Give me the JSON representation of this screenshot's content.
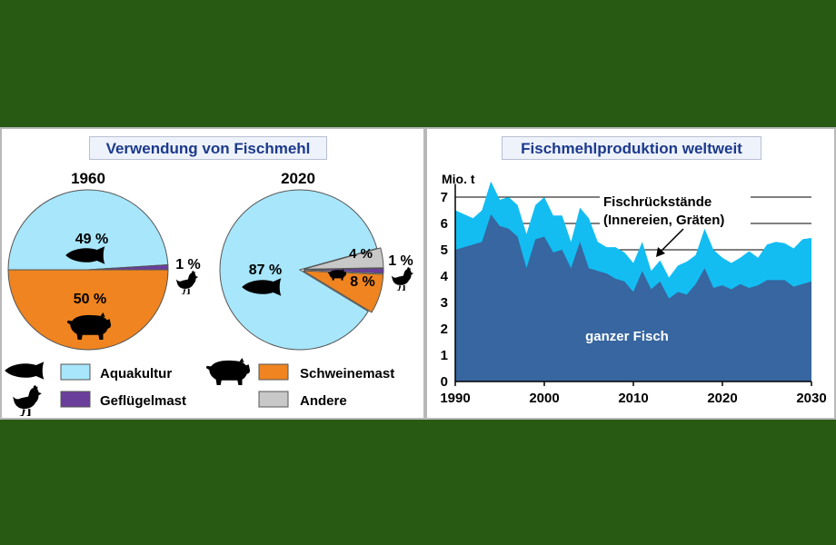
{
  "colors": {
    "background": "#285a14",
    "aquakultur": "#a7e6fb",
    "schweinemast": "#ef8420",
    "gefluegelmast": "#6a3f9c",
    "andere": "#c8c8c8",
    "ganzer_fisch": "#3766a0",
    "fischrueckstaende": "#13bdf2",
    "title_text": "#1c3a8c"
  },
  "left_panel": {
    "title": "Verwendung von Fischmehl",
    "legend": [
      {
        "label": "Aquakultur",
        "color_key": "aquakultur",
        "icon": "fish-icon"
      },
      {
        "label": "Schweinemast",
        "color_key": "schweinemast",
        "icon": "pig-icon"
      },
      {
        "label": "Geflügelmast",
        "color_key": "gefluegelmast",
        "icon": "chicken-icon"
      },
      {
        "label": "Andere",
        "color_key": "andere",
        "icon": ""
      }
    ]
  },
  "right_panel": {
    "title": "Fischmehlproduktion weltweit"
  },
  "chart_data": [
    {
      "type": "pie",
      "title": "1960",
      "slices": [
        {
          "label": "Aquakultur",
          "value": 49,
          "text": "49 %"
        },
        {
          "label": "Geflügelmast",
          "value": 1,
          "text": "1 %"
        },
        {
          "label": "Schweinemast",
          "value": 50,
          "text": "50 %"
        }
      ]
    },
    {
      "type": "pie",
      "title": "2020",
      "slices": [
        {
          "label": "Aquakultur",
          "value": 87,
          "text": "87 %"
        },
        {
          "label": "Schweinemast",
          "value": 8,
          "text": "8 %"
        },
        {
          "label": "Geflügelmast",
          "value": 1,
          "text": "1 %"
        },
        {
          "label": "Andere",
          "value": 4,
          "text": "4 %"
        }
      ]
    },
    {
      "type": "area",
      "ylabel": "Mio. t",
      "xlim": [
        1990,
        2030
      ],
      "ylim": [
        0,
        7.5
      ],
      "xticks": [
        1990,
        2000,
        2010,
        2020,
        2030
      ],
      "yticks": [
        0,
        1,
        2,
        3,
        4,
        5,
        6,
        7
      ],
      "grid": "y-partial",
      "x": [
        1990,
        1992,
        1993,
        1994,
        1995,
        1996,
        1997,
        1998,
        1999,
        2000,
        2001,
        2002,
        2003,
        2004,
        2005,
        2006,
        2007,
        2008,
        2009,
        2010,
        2011,
        2012,
        2013,
        2014,
        2015,
        2016,
        2017,
        2018,
        2019,
        2020,
        2021,
        2022,
        2023,
        2024,
        2025,
        2026,
        2027,
        2028,
        2029,
        2030
      ],
      "series": [
        {
          "name": "ganzer Fisch",
          "stack": "bottom",
          "values": [
            5.0,
            5.2,
            5.3,
            6.35,
            5.9,
            5.8,
            5.5,
            4.3,
            5.4,
            5.5,
            4.9,
            5.0,
            4.3,
            5.3,
            4.3,
            4.2,
            4.1,
            3.9,
            3.8,
            3.4,
            4.2,
            3.5,
            3.8,
            3.15,
            3.4,
            3.3,
            3.7,
            4.3,
            3.55,
            3.65,
            3.5,
            3.7,
            3.55,
            3.65,
            3.85,
            3.85,
            3.85,
            3.6,
            3.7,
            3.8
          ]
        },
        {
          "name": "Fischrückstände (Innereien, Gräten)",
          "stack": "top",
          "values": [
            6.5,
            6.2,
            6.5,
            7.6,
            6.9,
            7.0,
            6.7,
            5.6,
            6.7,
            7.0,
            6.3,
            6.3,
            5.3,
            6.6,
            6.2,
            5.3,
            5.1,
            5.1,
            4.9,
            4.5,
            5.3,
            4.2,
            4.6,
            3.95,
            4.4,
            4.55,
            4.8,
            5.8,
            5.0,
            4.7,
            4.5,
            4.7,
            4.95,
            4.7,
            5.2,
            5.3,
            5.25,
            5.05,
            5.4,
            5.45
          ]
        }
      ],
      "annotations": [
        {
          "text": "Fischrückstände",
          "target": "top"
        },
        {
          "text": "(Innereien, Gräten)",
          "target": "top"
        },
        {
          "text": "ganzer Fisch",
          "target": "bottom"
        }
      ]
    }
  ]
}
